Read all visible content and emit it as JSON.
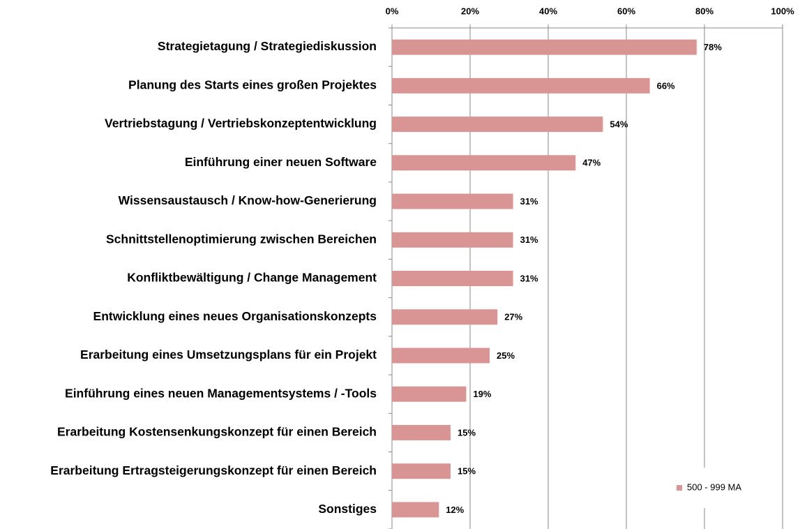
{
  "chart_data": {
    "type": "hbar",
    "categories": [
      "Strategietagung / Strategiediskussion",
      "Planung des Starts eines großen Projektes",
      "Vertriebstagung / Vertriebskonzeptentwicklung",
      "Einführung einer neuen Software",
      "Wissensaustausch / Know-how-Generierung",
      "Schnittstellenoptimierung zwischen Bereichen",
      "Konfliktbewältigung / Change Management",
      "Entwicklung eines neues Organisationskonzepts",
      "Erarbeitung eines Umsetzungsplans für ein Projekt",
      "Einführung eines neuen Managementsystems / -Tools",
      "Erarbeitung Kostensenkungskonzept für einen Bereich",
      "Erarbeitung Ertragsteigerungskonzept für einen Bereich",
      "Sonstiges"
    ],
    "series": [
      {
        "name": "500 - 999 MA",
        "color": "#d99594",
        "values": [
          78,
          66,
          54,
          47,
          31,
          31,
          31,
          27,
          25,
          19,
          15,
          15,
          12
        ],
        "value_labels": [
          "78%",
          "66%",
          "54%",
          "47%",
          "31%",
          "31%",
          "31%",
          "27%",
          "25%",
          "19%",
          "15%",
          "15%",
          "12%"
        ]
      }
    ],
    "xlim": [
      0,
      100
    ],
    "xticks": [
      {
        "value": 0,
        "label": "0%"
      },
      {
        "value": 20,
        "label": "20%"
      },
      {
        "value": 40,
        "label": "40%"
      },
      {
        "value": 60,
        "label": "60%"
      },
      {
        "value": 80,
        "label": "80%"
      },
      {
        "value": 100,
        "label": "100%"
      }
    ],
    "grid": true,
    "legend": "lower right"
  }
}
